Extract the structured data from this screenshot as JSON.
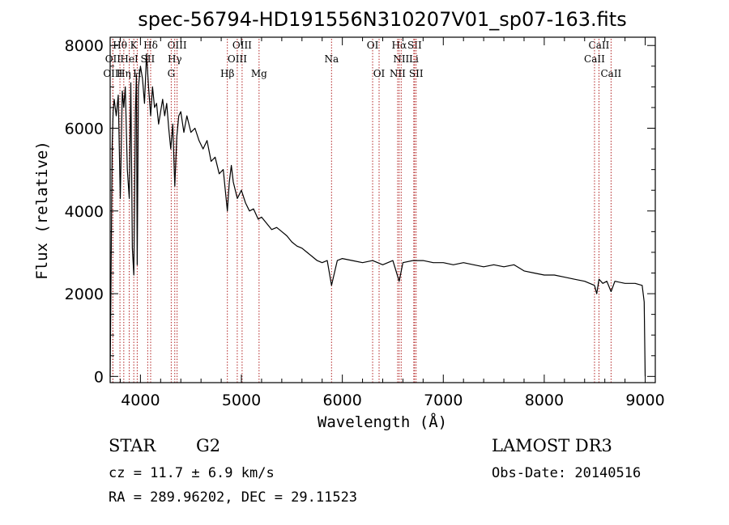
{
  "chart_data": {
    "type": "line",
    "title": "spec-56794-HD191556N310207V01_sp07-163.fits",
    "xlabel": "Wavelength (Å)",
    "ylabel": "Flux (relative)",
    "xlim": [
      3700,
      9100
    ],
    "ylim": [
      -150,
      8200
    ],
    "xticks": [
      4000,
      5000,
      6000,
      7000,
      8000,
      9000
    ],
    "yticks": [
      0,
      2000,
      4000,
      6000,
      8000
    ],
    "grid": false,
    "line_color": "#000000",
    "marker_color": "#b22222",
    "series": [
      {
        "name": "spectrum",
        "x": [
          3700,
          3710,
          3720,
          3730,
          3740,
          3760,
          3780,
          3800,
          3820,
          3835,
          3850,
          3870,
          3889,
          3905,
          3920,
          3934,
          3950,
          3960,
          3968,
          3980,
          4000,
          4020,
          4040,
          4060,
          4080,
          4101,
          4120,
          4140,
          4160,
          4180,
          4200,
          4220,
          4240,
          4260,
          4280,
          4300,
          4320,
          4340,
          4360,
          4380,
          4400,
          4430,
          4460,
          4500,
          4540,
          4580,
          4620,
          4660,
          4700,
          4740,
          4780,
          4820,
          4861,
          4880,
          4900,
          4920,
          4960,
          5000,
          5040,
          5080,
          5120,
          5167,
          5200,
          5250,
          5300,
          5350,
          5400,
          5450,
          5500,
          5550,
          5600,
          5650,
          5700,
          5750,
          5800,
          5850,
          5893,
          5950,
          6000,
          6100,
          6200,
          6300,
          6400,
          6500,
          6563,
          6600,
          6700,
          6800,
          6900,
          7000,
          7100,
          7200,
          7300,
          7400,
          7500,
          7600,
          7700,
          7800,
          7900,
          8000,
          8100,
          8200,
          8300,
          8400,
          8498,
          8520,
          8542,
          8580,
          8620,
          8662,
          8700,
          8800,
          8900,
          8970,
          8990,
          9000
        ],
        "y": [
          0,
          2700,
          5600,
          6400,
          6700,
          6300,
          6800,
          4300,
          6900,
          6500,
          7000,
          5000,
          4300,
          7100,
          3100,
          2450,
          6400,
          7300,
          2700,
          7000,
          7500,
          7200,
          6600,
          7800,
          7000,
          6300,
          7000,
          6500,
          6600,
          6100,
          6400,
          6700,
          6300,
          6600,
          6000,
          5500,
          6100,
          4600,
          5800,
          6300,
          6400,
          5900,
          6300,
          5900,
          6000,
          5700,
          5500,
          5700,
          5200,
          5300,
          4900,
          5000,
          4000,
          4700,
          5100,
          4700,
          4300,
          4500,
          4200,
          4000,
          4050,
          3800,
          3850,
          3700,
          3550,
          3600,
          3500,
          3400,
          3250,
          3150,
          3100,
          3000,
          2900,
          2800,
          2750,
          2800,
          2200,
          2800,
          2850,
          2800,
          2750,
          2800,
          2700,
          2800,
          2300,
          2750,
          2800,
          2800,
          2750,
          2750,
          2700,
          2750,
          2700,
          2650,
          2700,
          2650,
          2700,
          2550,
          2500,
          2450,
          2450,
          2400,
          2350,
          2300,
          2200,
          2000,
          2350,
          2250,
          2300,
          2050,
          2300,
          2250,
          2250,
          2200,
          1800,
          0
        ]
      }
    ],
    "spectral_lines": [
      {
        "label": "Hθ",
        "x": 3797,
        "row": 0
      },
      {
        "label": "K",
        "x": 3934,
        "row": 0
      },
      {
        "label": "Hδ",
        "x": 4101,
        "row": 0
      },
      {
        "label": "OIII",
        "x": 4363,
        "row": 0
      },
      {
        "label": "OIII",
        "x": 5007,
        "row": 0
      },
      {
        "label": "OI",
        "x": 6300,
        "row": 0
      },
      {
        "label": "Hα",
        "x": 6563,
        "row": 0
      },
      {
        "label": "SII",
        "x": 6716,
        "row": 0
      },
      {
        "label": "CaII",
        "x": 8542,
        "row": 0
      },
      {
        "label": "OII",
        "x": 3727,
        "row": 1
      },
      {
        "label": "HeI",
        "x": 3889,
        "row": 1
      },
      {
        "label": "SII",
        "x": 4072,
        "row": 1
      },
      {
        "label": "Hγ",
        "x": 4340,
        "row": 1
      },
      {
        "label": "OIII",
        "x": 4959,
        "row": 1
      },
      {
        "label": "Na",
        "x": 5893,
        "row": 1
      },
      {
        "label": "NII",
        "x": 6583,
        "row": 1
      },
      {
        "label": "Li",
        "x": 6708,
        "row": 1
      },
      {
        "label": "CaII",
        "x": 8498,
        "row": 1
      },
      {
        "label": "OIII",
        "x": 3727,
        "row": 2
      },
      {
        "label": "Hη",
        "x": 3835,
        "row": 2
      },
      {
        "label": "H",
        "x": 3968,
        "row": 2
      },
      {
        "label": "G",
        "x": 4305,
        "row": 2
      },
      {
        "label": "Hβ",
        "x": 4861,
        "row": 2
      },
      {
        "label": "Mg",
        "x": 5175,
        "row": 2
      },
      {
        "label": "OI",
        "x": 6364,
        "row": 2
      },
      {
        "label": "NII",
        "x": 6548,
        "row": 2
      },
      {
        "label": "SII",
        "x": 6731,
        "row": 2
      },
      {
        "label": "CaII",
        "x": 8662,
        "row": 2
      }
    ]
  },
  "info": {
    "object_class": "STAR",
    "subclass": "G2",
    "survey": "LAMOST DR3",
    "redshift": "cz = 11.7 ± 6.9 km/s",
    "obs_date": "Obs-Date: 20140516",
    "coords": "RA = 289.96202, DEC =  29.11523"
  }
}
